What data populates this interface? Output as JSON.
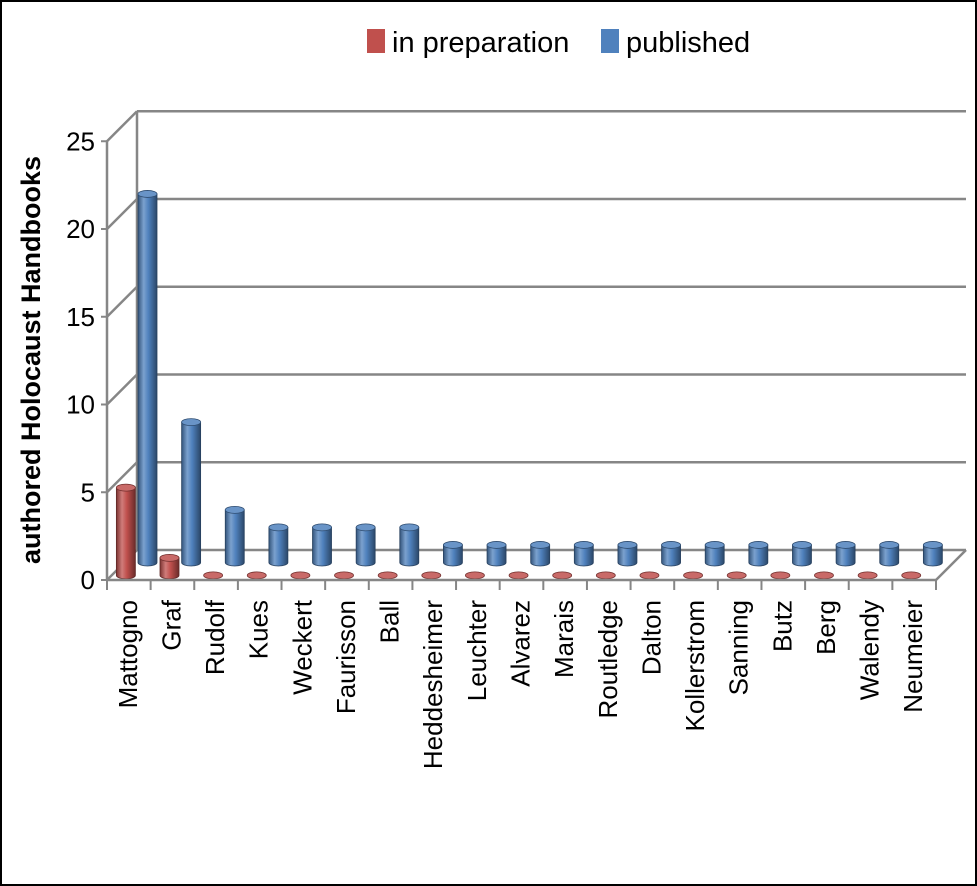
{
  "chart_data": {
    "type": "bar",
    "style": "3d-column",
    "ylabel": "authored Holocaust Handbooks",
    "ylim": [
      0,
      25
    ],
    "yticks": [
      0,
      5,
      10,
      15,
      20,
      25
    ],
    "yticks_labels": [
      "0",
      "5",
      "10",
      "15",
      "20",
      "25"
    ],
    "grid": true,
    "legend_position": "top",
    "categories": [
      "Mattogno",
      "Graf",
      "Rudolf",
      "Kues",
      "Weckert",
      "Faurisson",
      "Ball",
      "Heddesheimer",
      "Leuchter",
      "Alvarez",
      "Marais",
      "Routledge",
      "Dalton",
      "Kollerstrom",
      "Sanning",
      "Butz",
      "Berg",
      "Walendy",
      "Neumeier"
    ],
    "series": [
      {
        "name": "in preparation",
        "color": "#c0504d",
        "values": [
          5,
          1,
          0,
          0,
          0,
          0,
          0,
          0,
          0,
          0,
          0,
          0,
          0,
          0,
          0,
          0,
          0,
          0,
          0
        ]
      },
      {
        "name": "published",
        "color": "#4f81bd",
        "values": [
          21,
          8,
          3,
          2,
          2,
          2,
          2,
          1,
          1,
          1,
          1,
          1,
          1,
          1,
          1,
          1,
          1,
          1,
          1
        ]
      }
    ]
  }
}
